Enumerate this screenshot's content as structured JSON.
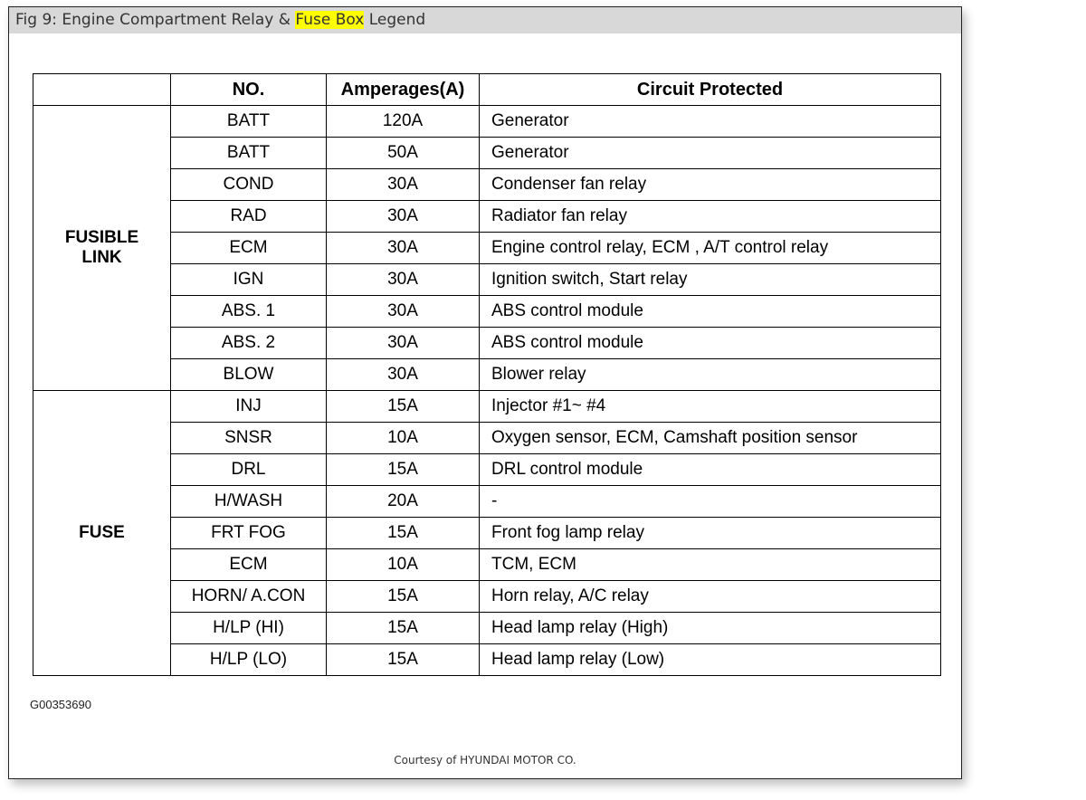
{
  "title": {
    "prefix": "Fig 9: Engine Compartment Relay & ",
    "highlight": "Fuse Box",
    "suffix": " Legend"
  },
  "highlight_color": "#ffff00",
  "table": {
    "headers": [
      "",
      "NO.",
      "Amperages(A)",
      "Circuit Protected"
    ],
    "groups": [
      {
        "label_line1": "FUSIBLE",
        "label_line2": "LINK",
        "rows": [
          [
            "BATT",
            "120A",
            "Generator"
          ],
          [
            "BATT",
            "50A",
            "Generator"
          ],
          [
            "COND",
            "30A",
            "Condenser fan relay"
          ],
          [
            "RAD",
            "30A",
            "Radiator fan relay"
          ],
          [
            "ECM",
            "30A",
            "Engine control relay, ECM , A/T control relay"
          ],
          [
            "IGN",
            "30A",
            "Ignition switch, Start relay"
          ],
          [
            "ABS. 1",
            "30A",
            "ABS control module"
          ],
          [
            "ABS. 2",
            "30A",
            "ABS control module"
          ],
          [
            "BLOW",
            "30A",
            "Blower relay"
          ]
        ]
      },
      {
        "label_line1": "FUSE",
        "label_line2": "",
        "rows": [
          [
            "INJ",
            "15A",
            "Injector #1~ #4"
          ],
          [
            "SNSR",
            "10A",
            "Oxygen sensor, ECM, Camshaft position sensor"
          ],
          [
            "DRL",
            "15A",
            "DRL control module"
          ],
          [
            "H/WASH",
            "20A",
            "-"
          ],
          [
            "FRT FOG",
            "15A",
            "Front fog lamp relay"
          ],
          [
            "ECM",
            "10A",
            "TCM, ECM"
          ],
          [
            "HORN/ A.CON",
            "15A",
            "Horn relay, A/C relay"
          ],
          [
            "H/LP (HI)",
            "15A",
            "Head lamp relay (High)"
          ],
          [
            "H/LP (LO)",
            "15A",
            "Head lamp relay (Low)"
          ]
        ]
      }
    ]
  },
  "figure_code": "G00353690",
  "courtesy": "Courtesy of HYUNDAI MOTOR CO."
}
